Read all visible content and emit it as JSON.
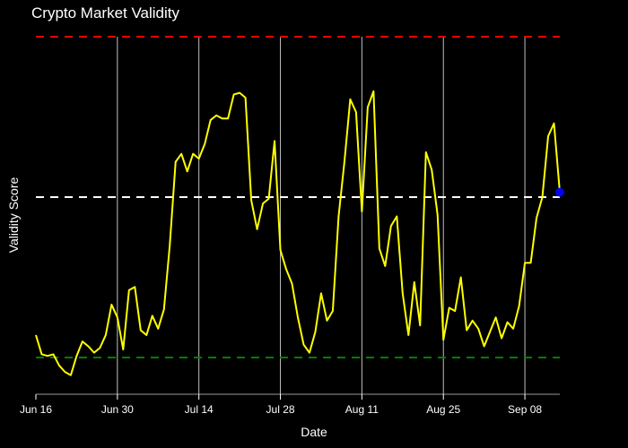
{
  "chart_data": {
    "type": "line",
    "title": "Crypto Market Validity",
    "xlabel": "Date",
    "ylabel": "Validity Score",
    "x_tick_labels": [
      "Jun 16",
      "Jun 30",
      "Jul 14",
      "Jul 28",
      "Aug 11",
      "Aug 25",
      "Sep 08"
    ],
    "x_tick_offsets": [
      0,
      14,
      28,
      42,
      56,
      70,
      84
    ],
    "xlim": [
      0,
      90
    ],
    "ylim": [
      -0.25,
      2.25
    ],
    "grid": {
      "x": true,
      "y": false
    },
    "legend": "none",
    "background": "#000000",
    "series": [
      {
        "color": "#ffff00",
        "values": [
          0.14,
          0.02,
          0.01,
          0.02,
          -0.05,
          -0.09,
          -0.11,
          0.01,
          0.1,
          0.07,
          0.03,
          0.06,
          0.14,
          0.33,
          0.25,
          0.05,
          0.42,
          0.44,
          0.17,
          0.14,
          0.26,
          0.18,
          0.3,
          0.7,
          1.22,
          1.27,
          1.16,
          1.27,
          1.24,
          1.33,
          1.48,
          1.51,
          1.49,
          1.49,
          1.64,
          1.65,
          1.62,
          0.98,
          0.8,
          0.96,
          0.99,
          1.35,
          0.67,
          0.55,
          0.46,
          0.25,
          0.08,
          0.03,
          0.16,
          0.4,
          0.23,
          0.29,
          0.88,
          1.22,
          1.61,
          1.53,
          0.91,
          1.56,
          1.66,
          0.68,
          0.57,
          0.82,
          0.88,
          0.4,
          0.14,
          0.47,
          0.2,
          1.28,
          1.17,
          0.89,
          0.11,
          0.31,
          0.29,
          0.5,
          0.17,
          0.23,
          0.18,
          0.07,
          0.16,
          0.25,
          0.12,
          0.22,
          0.18,
          0.32,
          0.59,
          0.59,
          0.87,
          1.0,
          1.38,
          1.46,
          1.03
        ]
      }
    ],
    "reference_lines": [
      {
        "y": 2.0,
        "color": "#ff0000"
      },
      {
        "y": 1.0,
        "color": "#ffffff"
      },
      {
        "y": 0.0,
        "color": "#008000"
      }
    ],
    "highlight_point": {
      "index": 90,
      "color": "#0000ff"
    }
  }
}
